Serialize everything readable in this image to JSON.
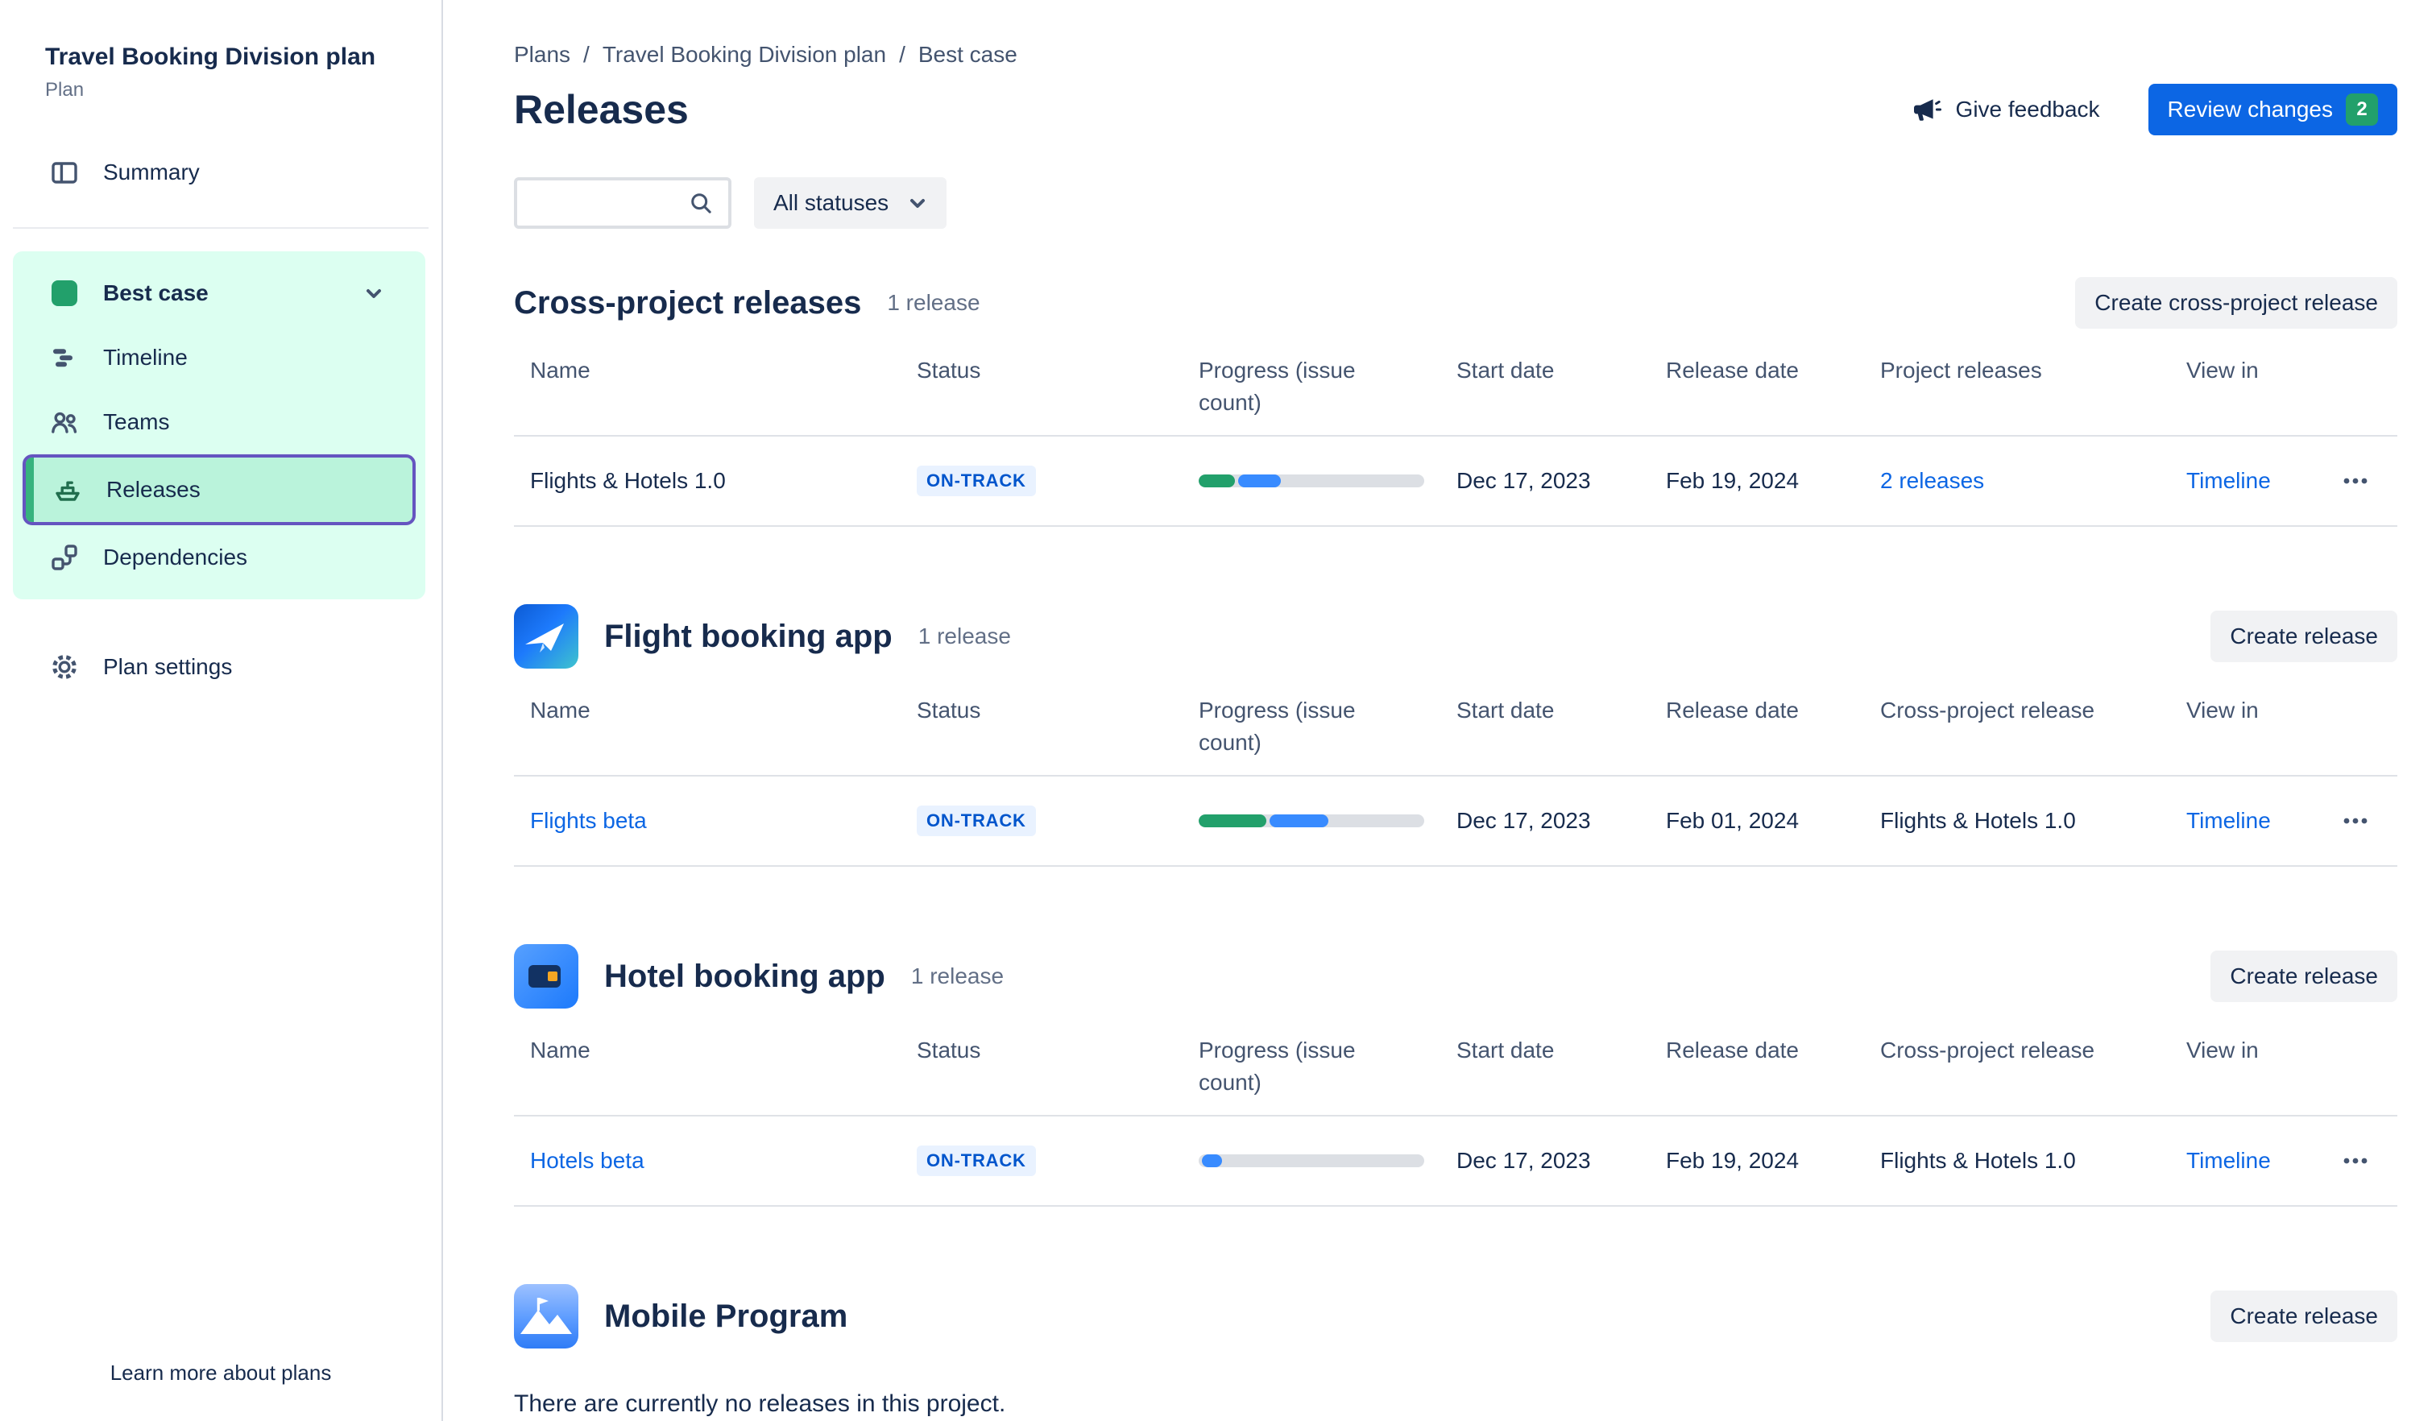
{
  "sidebar": {
    "plan_title": "Travel Booking Division plan",
    "plan_type": "Plan",
    "summary": "Summary",
    "scenario_label": "Best case",
    "nav": {
      "timeline": "Timeline",
      "teams": "Teams",
      "releases": "Releases",
      "dependencies": "Dependencies"
    },
    "plan_settings": "Plan settings",
    "learn_more": "Learn more about plans"
  },
  "header": {
    "breadcrumb": {
      "plans": "Plans",
      "plan": "Travel Booking Division plan",
      "scenario": "Best case"
    },
    "separator": "/",
    "page_title": "Releases",
    "give_feedback": "Give feedback",
    "review_changes": "Review changes",
    "review_badge": "2"
  },
  "toolbar": {
    "search_placeholder": "",
    "status_filter": "All statuses"
  },
  "sections": [
    {
      "title": "Cross-project releases",
      "count": "1 release",
      "action": "Create cross-project release",
      "headers": [
        "Name",
        "Status",
        "Progress (issue count)",
        "Start date",
        "Release date",
        "Project releases",
        "View in"
      ],
      "row": {
        "name": "Flights & Hotels 1.0",
        "status": "ON-TRACK",
        "progress": {
          "done_pct": 16,
          "in_progress_pct": 19
        },
        "start_date": "Dec 17, 2023",
        "release_date": "Feb 19, 2024",
        "related": "2 releases",
        "view_in": "Timeline"
      }
    },
    {
      "title": "Flight booking app",
      "count": "1 release",
      "action": "Create release",
      "headers": [
        "Name",
        "Status",
        "Progress (issue count)",
        "Start date",
        "Release date",
        "Cross-project release",
        "View in"
      ],
      "row": {
        "name": "Flights beta",
        "status": "ON-TRACK",
        "progress": {
          "done_pct": 30,
          "in_progress_pct": 26
        },
        "start_date": "Dec 17, 2023",
        "release_date": "Feb 01, 2024",
        "related": "Flights & Hotels 1.0",
        "view_in": "Timeline"
      }
    },
    {
      "title": "Hotel booking app",
      "count": "1 release",
      "action": "Create release",
      "headers": [
        "Name",
        "Status",
        "Progress (issue count)",
        "Start date",
        "Release date",
        "Cross-project release",
        "View in"
      ],
      "row": {
        "name": "Hotels beta",
        "status": "ON-TRACK",
        "progress": {
          "done_pct": 0,
          "in_progress_pct": 9
        },
        "start_date": "Dec 17, 2023",
        "release_date": "Feb 19, 2024",
        "related": "Flights & Hotels 1.0",
        "view_in": "Timeline"
      }
    },
    {
      "title": "Mobile Program",
      "action": "Create release",
      "empty_text": "There are currently no releases in this project."
    }
  ],
  "colors": {
    "primary_blue": "#0C66E4",
    "link_blue": "#0C66E4",
    "on_track_bg": "#E9F2FF",
    "on_track_text": "#0055CC",
    "progress_done": "#22A06B",
    "progress_in_progress": "#388BFF",
    "sidebar_scenario_bg": "#DCFFF1",
    "sidebar_active_bg": "#BAF3DB",
    "highlight_purple": "#6554C0",
    "review_badge_green": "#22A06B"
  }
}
